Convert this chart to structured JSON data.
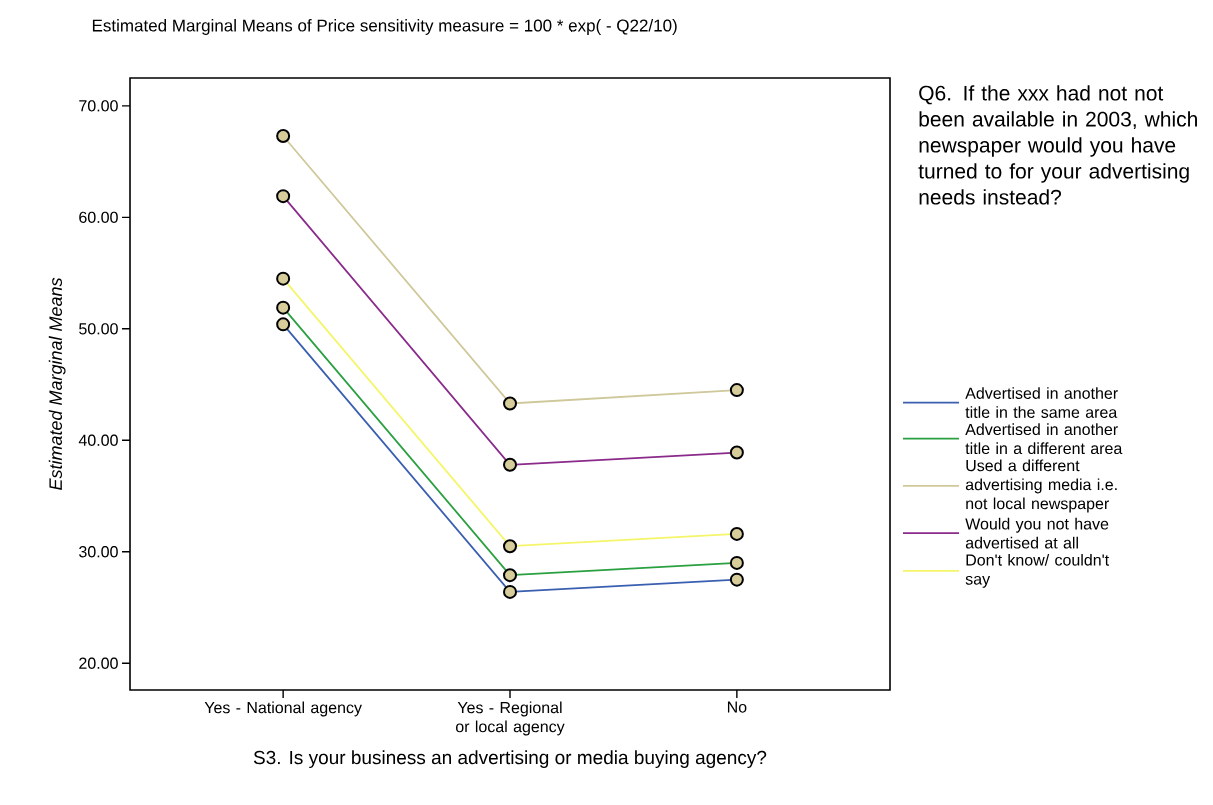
{
  "chart_data": {
    "type": "line",
    "title": "Estimated Marginal Means of Price sensitivity measure = 100  * exp( - Q22/10)",
    "xlabel": "S3. Is your business an advertising or media buying agency?",
    "ylabel": "Estimated Marginal Means",
    "legend_title": "Q6. If the xxx had not not been available in 2003, which newspaper would you have turned to for your advertising needs instead?",
    "categories": [
      "Yes - National agency",
      "Yes - Regional or local agency",
      "No"
    ],
    "series": [
      {
        "name": "Advertised in another title in the same area",
        "color": "#3a5fb0",
        "values": [
          50.4,
          26.4,
          27.5
        ]
      },
      {
        "name": "Advertised in another title in a different area",
        "color": "#2aa040",
        "values": [
          51.9,
          27.9,
          29.0
        ]
      },
      {
        "name": "Used a different advertising media i.e. not local newspaper",
        "color": "#cfc89a",
        "values": [
          67.3,
          43.3,
          44.5
        ]
      },
      {
        "name": "Would you not have advertised at all",
        "color": "#8a2a8a",
        "values": [
          61.9,
          37.8,
          38.9
        ]
      },
      {
        "name": "Don't know/ couldn't say",
        "color": "#f5f56a",
        "values": [
          54.5,
          30.5,
          31.6
        ]
      }
    ],
    "ylim": [
      17.6,
      72.5
    ],
    "yticks": [
      {
        "value": 20,
        "label": "20.00"
      },
      {
        "value": 30,
        "label": "30.00"
      },
      {
        "value": 40,
        "label": "40.00"
      },
      {
        "value": 50,
        "label": "50.00"
      },
      {
        "value": 60,
        "label": "60.00"
      },
      {
        "value": 70,
        "label": "70.00"
      }
    ],
    "legend": "right",
    "grid": false,
    "marker": "circle",
    "line_style": "solid"
  }
}
